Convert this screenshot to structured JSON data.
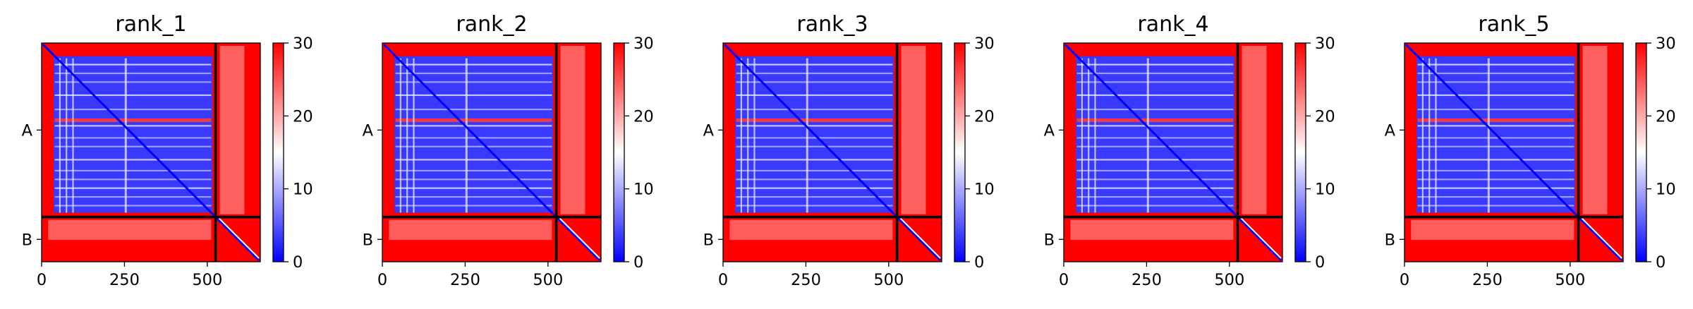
{
  "figure": {
    "colormap": {
      "low": "#0000ff",
      "mid": "#ffffff",
      "high": "#ff0000"
    }
  },
  "chart_data": [
    {
      "type": "heatmap",
      "title": "rank_1",
      "x_ticks": [
        0,
        250,
        500
      ],
      "y_ticks": [
        "A",
        "B"
      ],
      "colorbar_ticks": [
        0,
        10,
        20,
        30
      ],
      "chains": [
        {
          "name": "A",
          "start": 0,
          "end": 525
        },
        {
          "name": "B",
          "start": 525,
          "end": 660
        }
      ],
      "xlim": [
        0,
        660
      ],
      "ylim": [
        660,
        0
      ],
      "clim": [
        0,
        30
      ],
      "grid": false,
      "colorbar_position": "right"
    },
    {
      "type": "heatmap",
      "title": "rank_2",
      "x_ticks": [
        0,
        250,
        500
      ],
      "y_ticks": [
        "A",
        "B"
      ],
      "colorbar_ticks": [
        0,
        10,
        20,
        30
      ],
      "chains": [
        {
          "name": "A",
          "start": 0,
          "end": 525
        },
        {
          "name": "B",
          "start": 525,
          "end": 660
        }
      ],
      "xlim": [
        0,
        660
      ],
      "ylim": [
        660,
        0
      ],
      "clim": [
        0,
        30
      ],
      "grid": false,
      "colorbar_position": "right"
    },
    {
      "type": "heatmap",
      "title": "rank_3",
      "x_ticks": [
        0,
        250,
        500
      ],
      "y_ticks": [
        "A",
        "B"
      ],
      "colorbar_ticks": [
        0,
        10,
        20,
        30
      ],
      "chains": [
        {
          "name": "A",
          "start": 0,
          "end": 525
        },
        {
          "name": "B",
          "start": 525,
          "end": 660
        }
      ],
      "xlim": [
        0,
        660
      ],
      "ylim": [
        660,
        0
      ],
      "clim": [
        0,
        30
      ],
      "grid": false,
      "colorbar_position": "right"
    },
    {
      "type": "heatmap",
      "title": "rank_4",
      "x_ticks": [
        0,
        250,
        500
      ],
      "y_ticks": [
        "A",
        "B"
      ],
      "colorbar_ticks": [
        0,
        10,
        20,
        30
      ],
      "chains": [
        {
          "name": "A",
          "start": 0,
          "end": 525
        },
        {
          "name": "B",
          "start": 525,
          "end": 660
        }
      ],
      "xlim": [
        0,
        660
      ],
      "ylim": [
        660,
        0
      ],
      "clim": [
        0,
        30
      ],
      "grid": false,
      "colorbar_position": "right"
    },
    {
      "type": "heatmap",
      "title": "rank_5",
      "x_ticks": [
        0,
        250,
        500
      ],
      "y_ticks": [
        "A",
        "B"
      ],
      "colorbar_ticks": [
        0,
        10,
        20,
        30
      ],
      "chains": [
        {
          "name": "A",
          "start": 0,
          "end": 525
        },
        {
          "name": "B",
          "start": 525,
          "end": 660
        }
      ],
      "xlim": [
        0,
        660
      ],
      "ylim": [
        660,
        0
      ],
      "clim": [
        0,
        30
      ],
      "grid": false,
      "colorbar_position": "right"
    }
  ]
}
